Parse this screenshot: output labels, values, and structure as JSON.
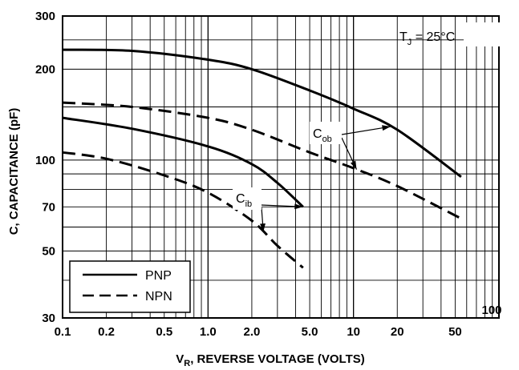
{
  "chart_data": {
    "type": "line",
    "x_scale": "log",
    "y_scale": "log",
    "xlim": [
      0.1,
      100
    ],
    "ylim": [
      30,
      300
    ],
    "grid": true,
    "legend_position": "bottom-left",
    "xlabel": {
      "main": "V",
      "sub": "R",
      "rest": ", REVERSE VOLTAGE (VOLTS)"
    },
    "ylabel": "C, CAPACITANCE (pF)",
    "x_tick_labels": [
      {
        "value": 0.1,
        "label": "0.1"
      },
      {
        "value": 0.2,
        "label": "0.2"
      },
      {
        "value": 0.5,
        "label": "0.5"
      },
      {
        "value": 1,
        "label": "1.0"
      },
      {
        "value": 2,
        "label": "2.0"
      },
      {
        "value": 5,
        "label": "5.0"
      },
      {
        "value": 10,
        "label": "10"
      },
      {
        "value": 20,
        "label": "20"
      },
      {
        "value": 50,
        "label": "50"
      },
      {
        "value": 100,
        "label": "100"
      }
    ],
    "y_tick_labels": [
      {
        "value": 30,
        "label": "30"
      },
      {
        "value": 50,
        "label": "50"
      },
      {
        "value": 70,
        "label": "70"
      },
      {
        "value": 100,
        "label": "100"
      },
      {
        "value": 200,
        "label": "200"
      },
      {
        "value": 300,
        "label": "300"
      }
    ],
    "y_grid_values": [
      30,
      40,
      50,
      60,
      70,
      80,
      90,
      100,
      150,
      200,
      250,
      300
    ],
    "annotation": {
      "main": "T",
      "sub": "J",
      "rest": " = 25°C"
    },
    "curve_labels": [
      {
        "main": "C",
        "sub": "ob",
        "target_series": [
          "PNP Cob",
          "NPN Cob"
        ]
      },
      {
        "main": "C",
        "sub": "ib",
        "target_series": [
          "PNP Cib",
          "NPN Cib"
        ]
      }
    ],
    "series": [
      {
        "id": "PNP Cob",
        "line_style": "solid",
        "x": [
          0.1,
          0.3,
          1,
          2,
          5,
          10,
          20,
          55
        ],
        "y": [
          232,
          230,
          215,
          200,
          170,
          148,
          126,
          88
        ]
      },
      {
        "id": "NPN Cob",
        "line_style": "dashed",
        "x": [
          0.1,
          0.3,
          1,
          2,
          5,
          10,
          20,
          55
        ],
        "y": [
          155,
          150,
          138,
          126,
          106,
          94,
          82,
          64
        ]
      },
      {
        "id": "PNP Cib",
        "line_style": "solid",
        "x": [
          0.1,
          0.3,
          1,
          2,
          3,
          4.5
        ],
        "y": [
          138,
          127,
          111,
          97,
          84,
          70
        ]
      },
      {
        "id": "NPN Cib",
        "line_style": "dashed",
        "x": [
          0.1,
          0.2,
          0.5,
          1,
          2,
          3,
          4.5
        ],
        "y": [
          106,
          101,
          89,
          78,
          63,
          52,
          44
        ]
      }
    ],
    "legend": [
      {
        "label": "PNP",
        "line_style": "solid"
      },
      {
        "label": "NPN",
        "line_style": "dashed"
      }
    ]
  }
}
